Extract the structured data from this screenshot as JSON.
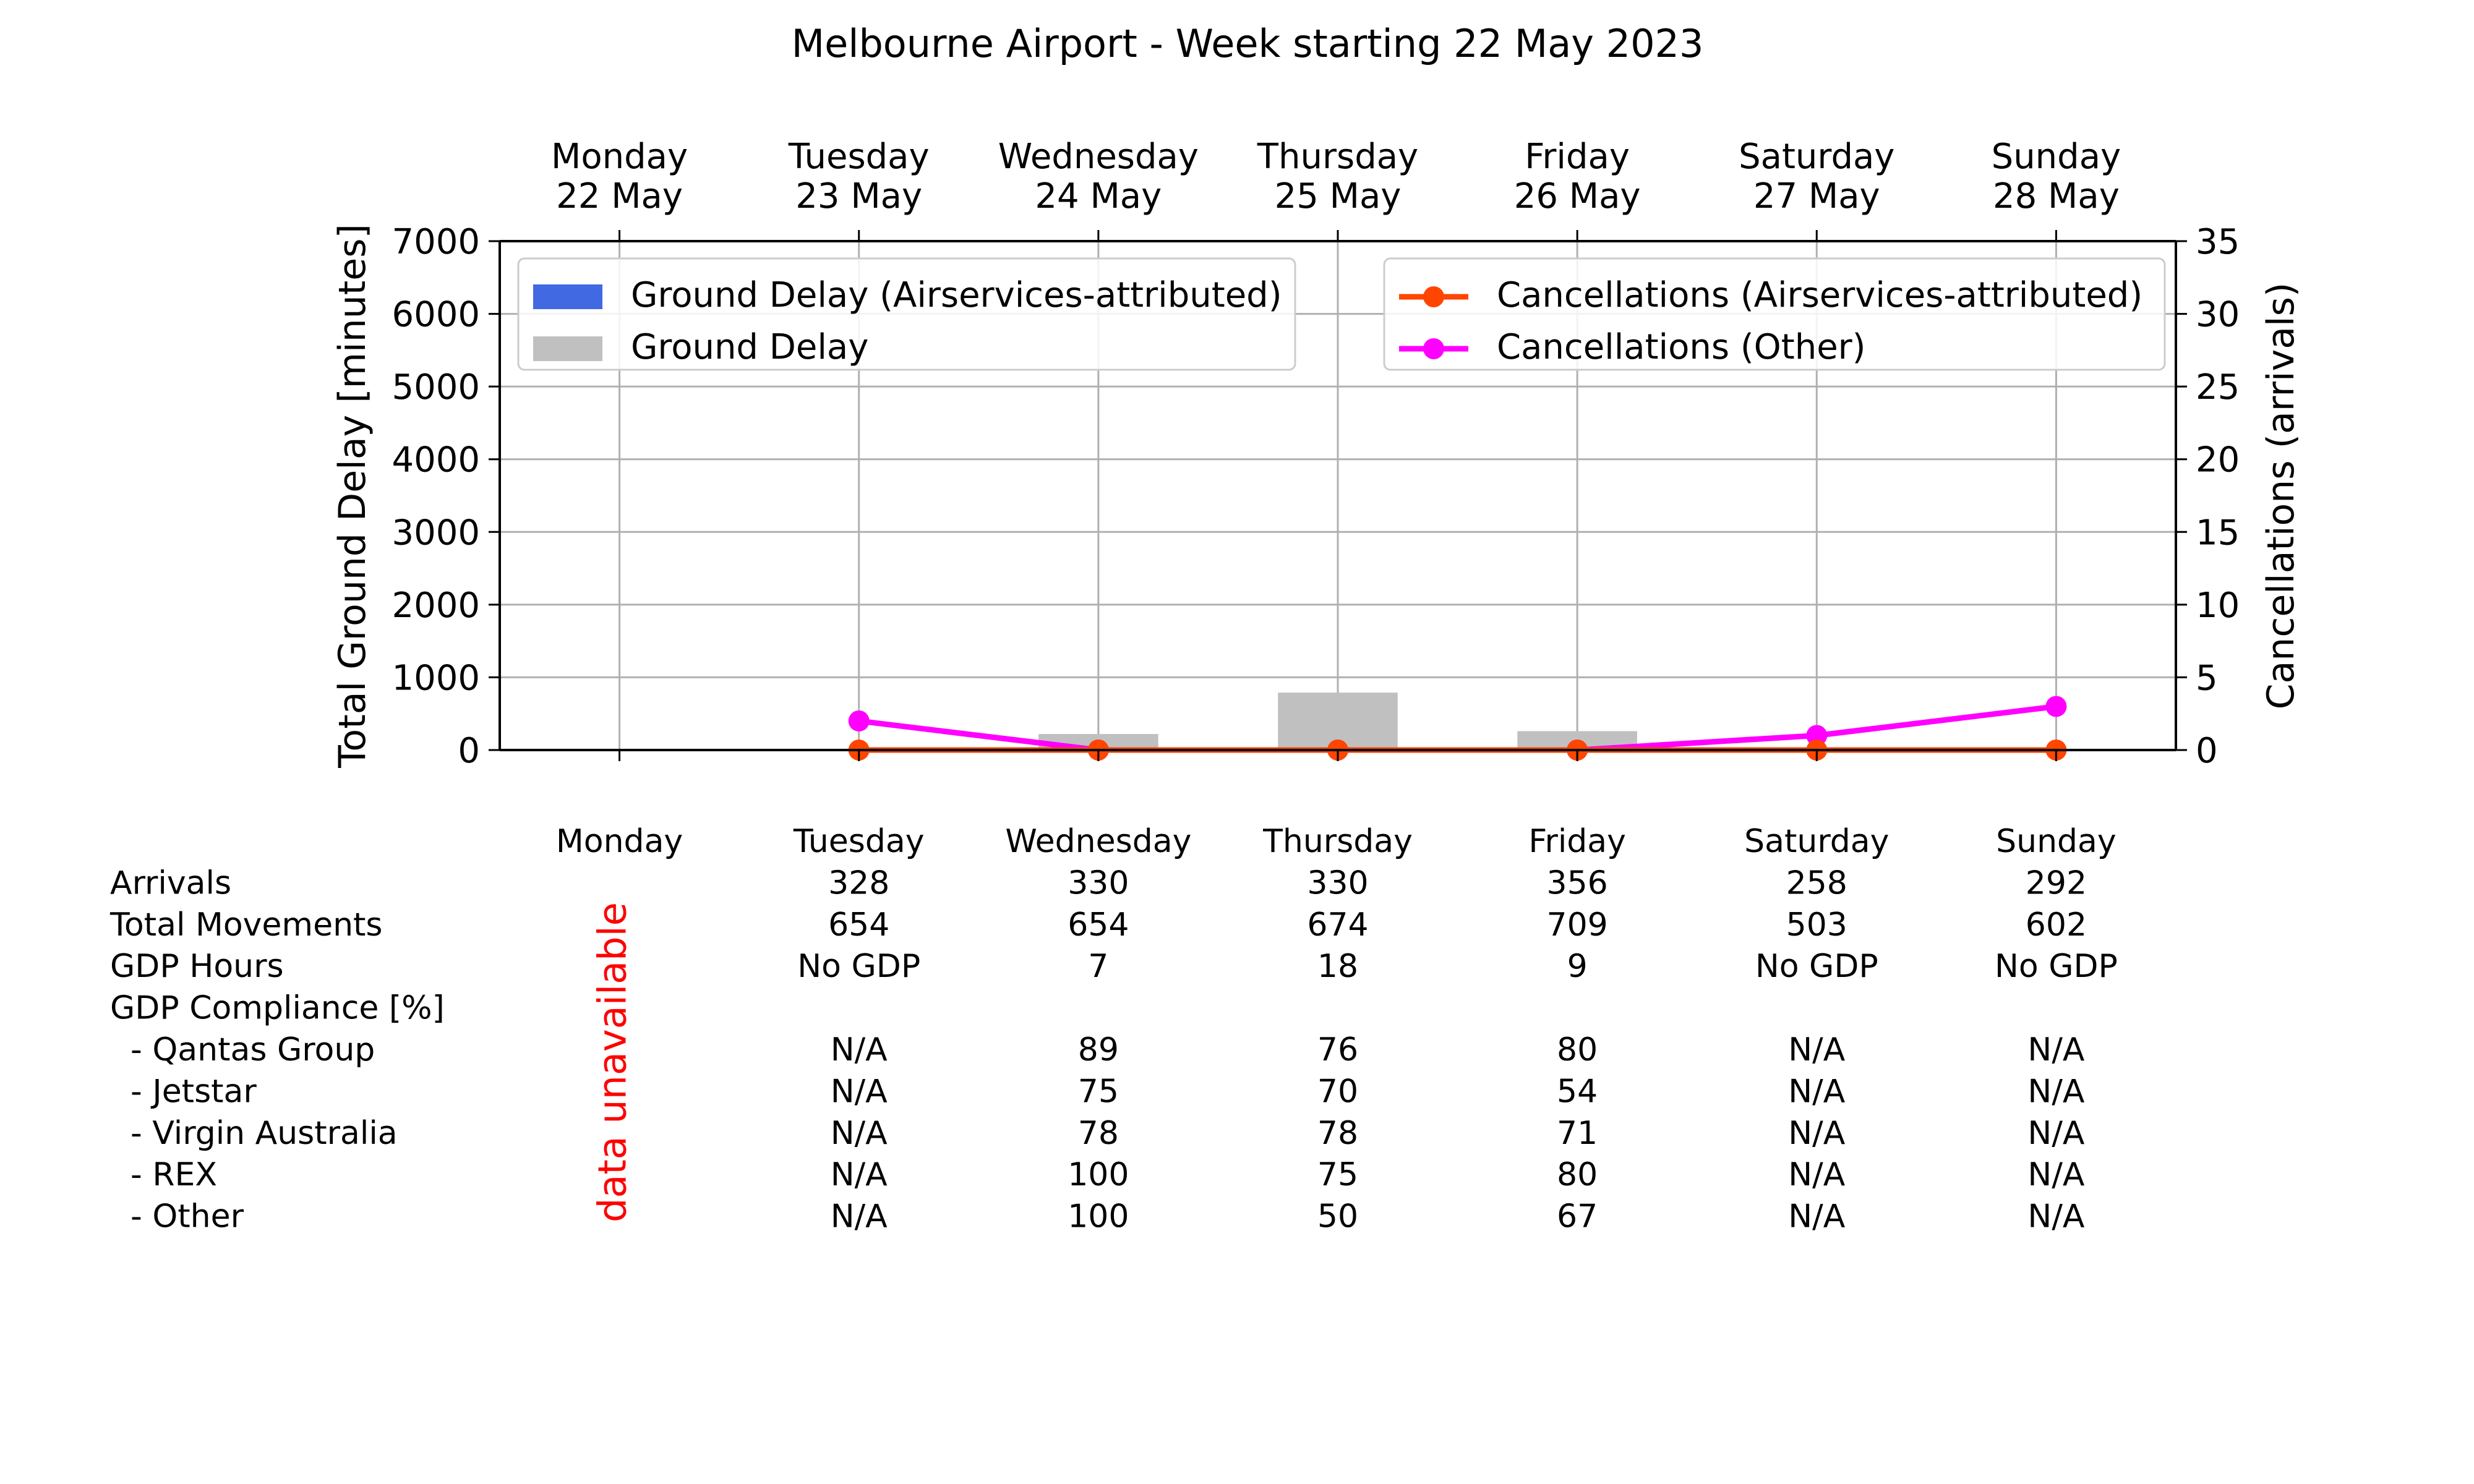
{
  "chart_data": {
    "type": "bar",
    "title": "Melbourne Airport - Week starting 22 May 2023",
    "days": [
      "Monday",
      "Tuesday",
      "Wednesday",
      "Thursday",
      "Friday",
      "Saturday",
      "Sunday"
    ],
    "dates": [
      "22 May",
      "23 May",
      "24 May",
      "25 May",
      "26 May",
      "27 May",
      "28 May"
    ],
    "ylabel": "Total Ground Delay [minutes]",
    "ylim": [
      0,
      7000
    ],
    "yticks": [
      0,
      1000,
      2000,
      3000,
      4000,
      5000,
      6000,
      7000
    ],
    "y2label": "Cancellations (arrivals)",
    "y2lim": [
      0,
      35
    ],
    "y2ticks": [
      0,
      5,
      10,
      15,
      20,
      25,
      30,
      35
    ],
    "grid": true,
    "bar_series": [
      {
        "name": "Ground Delay (Airservices-attributed)",
        "color": "#4169e1",
        "values": [
          null,
          0,
          0,
          0,
          0,
          0,
          0
        ]
      },
      {
        "name": "Ground Delay",
        "color": "#c0c0c0",
        "values": [
          null,
          0,
          220,
          790,
          260,
          0,
          0
        ]
      }
    ],
    "line_series": [
      {
        "name": "Cancellations (Airservices-attributed)",
        "color": "#ff4500",
        "values": [
          null,
          0,
          0,
          0,
          0,
          0,
          0
        ]
      },
      {
        "name": "Cancellations (Other)",
        "color": "#ff00ff",
        "values": [
          null,
          2,
          0,
          0,
          0,
          1,
          3
        ]
      }
    ],
    "legend_left_position": "upper-left",
    "legend_right_position": "upper-right"
  },
  "table": {
    "unavailable_note": "data unavailable",
    "unavailable_color": "#ff0000",
    "rows": [
      {
        "label": "Arrivals",
        "values": [
          null,
          "328",
          "330",
          "330",
          "356",
          "258",
          "292"
        ]
      },
      {
        "label": "Total Movements",
        "values": [
          null,
          "654",
          "654",
          "674",
          "709",
          "503",
          "602"
        ]
      },
      {
        "label": "GDP Hours",
        "values": [
          null,
          "No GDP",
          "7",
          "18",
          "9",
          "No GDP",
          "No GDP"
        ]
      },
      {
        "label": "GDP Compliance [%]",
        "values": [
          null,
          "",
          "",
          "",
          "",
          "",
          ""
        ]
      },
      {
        "label": "  - Qantas Group",
        "values": [
          null,
          "N/A",
          "89",
          "76",
          "80",
          "N/A",
          "N/A"
        ]
      },
      {
        "label": "  - Jetstar",
        "values": [
          null,
          "N/A",
          "75",
          "70",
          "54",
          "N/A",
          "N/A"
        ]
      },
      {
        "label": "  - Virgin Australia",
        "values": [
          null,
          "N/A",
          "78",
          "78",
          "71",
          "N/A",
          "N/A"
        ]
      },
      {
        "label": "  - REX",
        "values": [
          null,
          "N/A",
          "100",
          "75",
          "80",
          "N/A",
          "N/A"
        ]
      },
      {
        "label": "  - Other",
        "values": [
          null,
          "N/A",
          "100",
          "50",
          "67",
          "N/A",
          "N/A"
        ]
      }
    ]
  }
}
